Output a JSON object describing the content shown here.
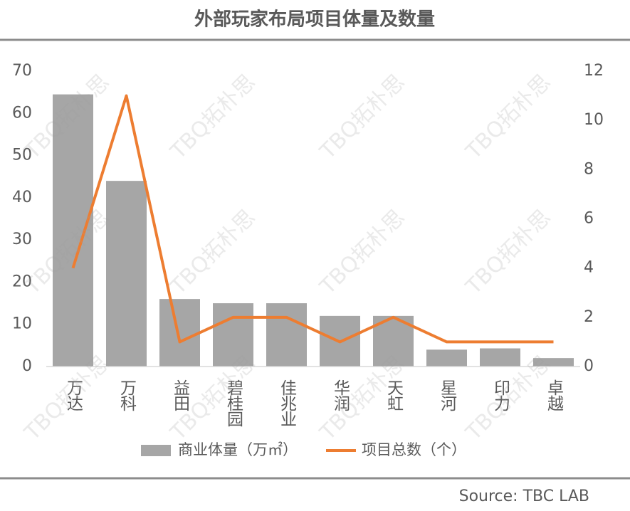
{
  "chart_data": {
    "type": "bar",
    "title": "外部玩家布局项目体量及数量",
    "categories": [
      "万达",
      "万科",
      "益田",
      "碧桂园",
      "佳兆业",
      "华润",
      "天虹",
      "星河",
      "印力",
      "卓越"
    ],
    "series": [
      {
        "name": "商业体量（万㎡）",
        "color": "#a6a6a6",
        "type": "bar",
        "values": [
          64.5,
          44,
          16,
          15,
          15,
          12,
          12,
          4,
          4.3,
          2
        ]
      },
      {
        "name": "项目总数（个）",
        "color": "#ed7d31",
        "type": "line",
        "axis": "y2",
        "values": [
          4,
          11,
          1,
          2,
          2,
          1,
          2,
          1,
          1,
          1
        ]
      }
    ],
    "ylim": [
      0,
      70
    ],
    "yticks": [
      0,
      10,
      20,
      30,
      40,
      50,
      60,
      70
    ],
    "y2lim": [
      0,
      12
    ],
    "y2ticks": [
      0,
      2,
      4,
      6,
      8,
      10,
      12
    ],
    "legend": "bottom",
    "source": "Source: TBC LAB",
    "watermark": "TBQ拓朴思"
  }
}
